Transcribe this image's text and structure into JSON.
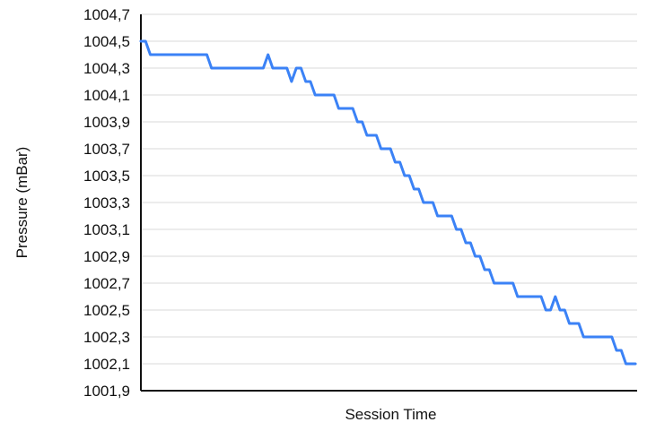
{
  "chart_data": {
    "type": "line",
    "xlabel": "Session Time",
    "ylabel": "Pressure (mBar)",
    "ylim": [
      1001.9,
      1004.7
    ],
    "y_ticks": [
      "1004,7",
      "1004,5",
      "1004,3",
      "1004,1",
      "1003,9",
      "1003,7",
      "1003,5",
      "1003,3",
      "1003,1",
      "1002,9",
      "1002,7",
      "1002,5",
      "1002,3",
      "1002,1",
      "1001,9"
    ],
    "grid": true,
    "line_color": "#3b82f6",
    "series": [
      {
        "values": [
          1004.5,
          1004.5,
          1004.4,
          1004.4,
          1004.4,
          1004.4,
          1004.4,
          1004.4,
          1004.4,
          1004.4,
          1004.4,
          1004.4,
          1004.4,
          1004.4,
          1004.4,
          1004.3,
          1004.3,
          1004.3,
          1004.3,
          1004.3,
          1004.3,
          1004.3,
          1004.3,
          1004.3,
          1004.3,
          1004.3,
          1004.3,
          1004.4,
          1004.3,
          1004.3,
          1004.3,
          1004.3,
          1004.2,
          1004.3,
          1004.3,
          1004.2,
          1004.2,
          1004.1,
          1004.1,
          1004.1,
          1004.1,
          1004.1,
          1004.0,
          1004.0,
          1004.0,
          1004.0,
          1003.9,
          1003.9,
          1003.8,
          1003.8,
          1003.8,
          1003.7,
          1003.7,
          1003.7,
          1003.6,
          1003.6,
          1003.5,
          1003.5,
          1003.4,
          1003.4,
          1003.3,
          1003.3,
          1003.3,
          1003.2,
          1003.2,
          1003.2,
          1003.2,
          1003.1,
          1003.1,
          1003.0,
          1003.0,
          1002.9,
          1002.9,
          1002.8,
          1002.8,
          1002.7,
          1002.7,
          1002.7,
          1002.7,
          1002.7,
          1002.6,
          1002.6,
          1002.6,
          1002.6,
          1002.6,
          1002.6,
          1002.5,
          1002.5,
          1002.6,
          1002.5,
          1002.5,
          1002.4,
          1002.4,
          1002.4,
          1002.3,
          1002.3,
          1002.3,
          1002.3,
          1002.3,
          1002.3,
          1002.3,
          1002.2,
          1002.2,
          1002.1,
          1002.1,
          1002.1
        ]
      }
    ]
  }
}
